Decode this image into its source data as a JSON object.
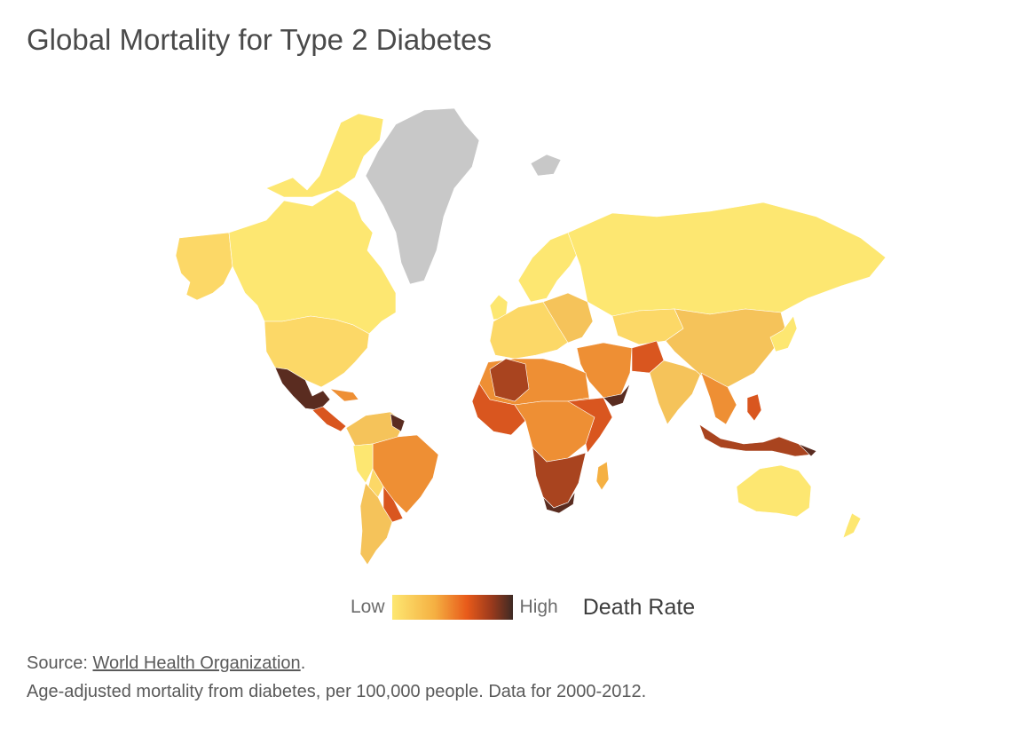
{
  "title": "Global Mortality for Type 2 Diabetes",
  "legend": {
    "low": "Low",
    "high": "High",
    "label": "Death Rate",
    "scale_colors": [
      "#fde771",
      "#f5b042",
      "#e85a1a",
      "#9c3a1c",
      "#3e2a24"
    ]
  },
  "source": {
    "prefix": "Source: ",
    "link": "World Health Organization",
    "suffix": "."
  },
  "note": "Age-adjusted mortality from diabetes, per 100,000 people. Data for 2000-2012.",
  "colors": {
    "no_data": "#c8c8c8",
    "low": "#fde771",
    "mid_low": "#f5c35a",
    "mid": "#ee8f34",
    "mid_high": "#d9561f",
    "high": "#a9441f",
    "highest": "#5a2c20"
  }
}
